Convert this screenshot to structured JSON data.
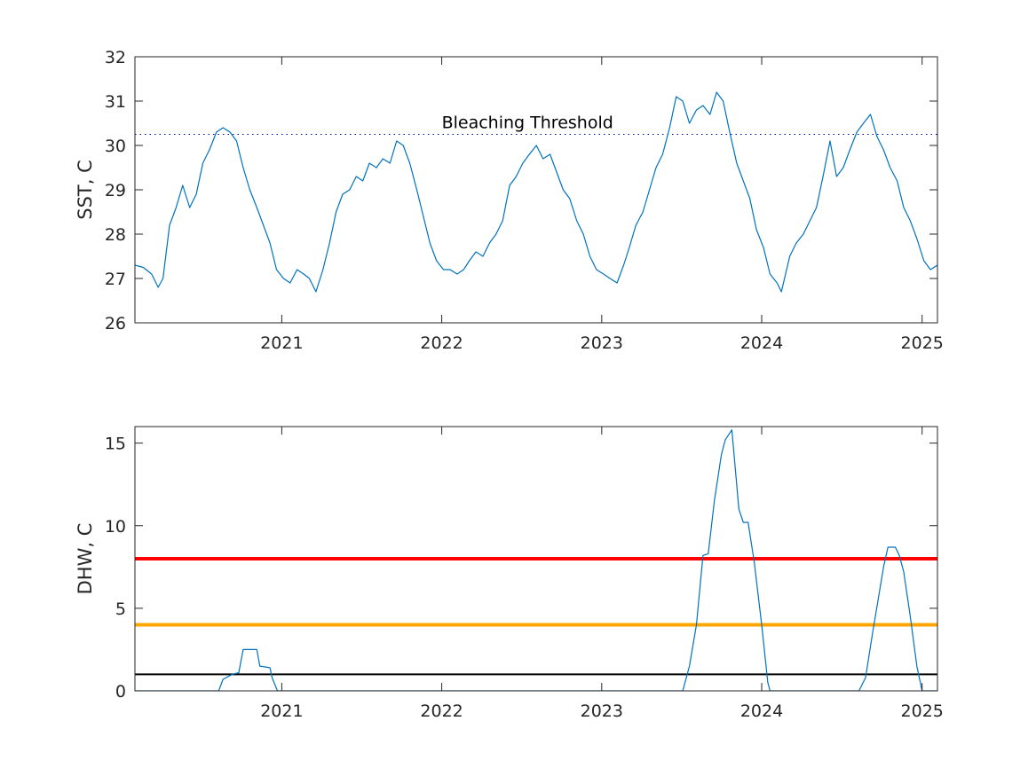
{
  "chart_data": [
    {
      "type": "line",
      "id": "sst",
      "xlabel": "",
      "ylabel": "SST, C",
      "xlim": [
        "2020-02-01",
        "2025-02-05"
      ],
      "ylim": [
        26,
        32
      ],
      "xticks": [
        {
          "date": "2021-01-01",
          "label": "2021"
        },
        {
          "date": "2022-01-01",
          "label": "2022"
        },
        {
          "date": "2023-01-01",
          "label": "2023"
        },
        {
          "date": "2024-01-01",
          "label": "2024"
        },
        {
          "date": "2025-01-01",
          "label": "2025"
        }
      ],
      "yticks": [
        26,
        27,
        28,
        29,
        30,
        31,
        32
      ],
      "grid": false,
      "series": [
        {
          "color": "#0072BD",
          "points": [
            [
              "2020-02-01",
              27.3
            ],
            [
              "2020-02-20",
              27.25
            ],
            [
              "2020-03-10",
              27.1
            ],
            [
              "2020-03-25",
              26.8
            ],
            [
              "2020-04-05",
              27.0
            ],
            [
              "2020-04-20",
              28.2
            ],
            [
              "2020-05-05",
              28.6
            ],
            [
              "2020-05-20",
              29.1
            ],
            [
              "2020-06-05",
              28.6
            ],
            [
              "2020-06-20",
              28.9
            ],
            [
              "2020-07-05",
              29.6
            ],
            [
              "2020-07-20",
              29.9
            ],
            [
              "2020-08-05",
              30.3
            ],
            [
              "2020-08-20",
              30.4
            ],
            [
              "2020-09-05",
              30.3
            ],
            [
              "2020-09-20",
              30.1
            ],
            [
              "2020-10-05",
              29.5
            ],
            [
              "2020-10-20",
              29.0
            ],
            [
              "2020-11-05",
              28.6
            ],
            [
              "2020-11-20",
              28.2
            ],
            [
              "2020-12-05",
              27.8
            ],
            [
              "2020-12-20",
              27.2
            ],
            [
              "2021-01-05",
              27.0
            ],
            [
              "2021-01-20",
              26.9
            ],
            [
              "2021-02-05",
              27.2
            ],
            [
              "2021-02-20",
              27.1
            ],
            [
              "2021-03-05",
              27.0
            ],
            [
              "2021-03-20",
              26.7
            ],
            [
              "2021-04-05",
              27.2
            ],
            [
              "2021-04-20",
              27.8
            ],
            [
              "2021-05-05",
              28.5
            ],
            [
              "2021-05-20",
              28.9
            ],
            [
              "2021-06-05",
              29.0
            ],
            [
              "2021-06-20",
              29.3
            ],
            [
              "2021-07-05",
              29.2
            ],
            [
              "2021-07-20",
              29.6
            ],
            [
              "2021-08-05",
              29.5
            ],
            [
              "2021-08-20",
              29.7
            ],
            [
              "2021-09-05",
              29.6
            ],
            [
              "2021-09-20",
              30.1
            ],
            [
              "2021-10-05",
              30.0
            ],
            [
              "2021-10-20",
              29.6
            ],
            [
              "2021-11-05",
              29.0
            ],
            [
              "2021-11-20",
              28.4
            ],
            [
              "2021-12-05",
              27.8
            ],
            [
              "2021-12-20",
              27.4
            ],
            [
              "2022-01-05",
              27.2
            ],
            [
              "2022-01-20",
              27.2
            ],
            [
              "2022-02-05",
              27.1
            ],
            [
              "2022-02-20",
              27.2
            ],
            [
              "2022-03-05",
              27.4
            ],
            [
              "2022-03-20",
              27.6
            ],
            [
              "2022-04-05",
              27.5
            ],
            [
              "2022-04-20",
              27.8
            ],
            [
              "2022-05-05",
              28.0
            ],
            [
              "2022-05-20",
              28.3
            ],
            [
              "2022-06-05",
              29.1
            ],
            [
              "2022-06-20",
              29.3
            ],
            [
              "2022-07-05",
              29.6
            ],
            [
              "2022-07-20",
              29.8
            ],
            [
              "2022-08-05",
              30.0
            ],
            [
              "2022-08-20",
              29.7
            ],
            [
              "2022-09-05",
              29.8
            ],
            [
              "2022-09-20",
              29.4
            ],
            [
              "2022-10-05",
              29.0
            ],
            [
              "2022-10-20",
              28.8
            ],
            [
              "2022-11-05",
              28.3
            ],
            [
              "2022-11-20",
              28.0
            ],
            [
              "2022-12-05",
              27.5
            ],
            [
              "2022-12-20",
              27.2
            ],
            [
              "2023-01-05",
              27.1
            ],
            [
              "2023-01-20",
              27.0
            ],
            [
              "2023-02-05",
              26.9
            ],
            [
              "2023-02-20",
              27.3
            ],
            [
              "2023-03-05",
              27.7
            ],
            [
              "2023-03-20",
              28.2
            ],
            [
              "2023-04-05",
              28.5
            ],
            [
              "2023-04-20",
              29.0
            ],
            [
              "2023-05-05",
              29.5
            ],
            [
              "2023-05-20",
              29.8
            ],
            [
              "2023-06-05",
              30.4
            ],
            [
              "2023-06-20",
              31.1
            ],
            [
              "2023-07-05",
              31.0
            ],
            [
              "2023-07-20",
              30.5
            ],
            [
              "2023-08-05",
              30.8
            ],
            [
              "2023-08-20",
              30.9
            ],
            [
              "2023-09-05",
              30.7
            ],
            [
              "2023-09-20",
              31.2
            ],
            [
              "2023-10-05",
              31.0
            ],
            [
              "2023-10-20",
              30.3
            ],
            [
              "2023-11-05",
              29.6
            ],
            [
              "2023-11-20",
              29.2
            ],
            [
              "2023-12-05",
              28.8
            ],
            [
              "2023-12-20",
              28.1
            ],
            [
              "2024-01-05",
              27.7
            ],
            [
              "2024-01-20",
              27.1
            ],
            [
              "2024-02-05",
              26.9
            ],
            [
              "2024-02-15",
              26.7
            ],
            [
              "2024-03-05",
              27.5
            ],
            [
              "2024-03-20",
              27.8
            ],
            [
              "2024-04-05",
              28.0
            ],
            [
              "2024-04-20",
              28.3
            ],
            [
              "2024-05-05",
              28.6
            ],
            [
              "2024-05-20",
              29.3
            ],
            [
              "2024-06-05",
              30.1
            ],
            [
              "2024-06-20",
              29.3
            ],
            [
              "2024-07-05",
              29.5
            ],
            [
              "2024-07-20",
              29.9
            ],
            [
              "2024-08-05",
              30.3
            ],
            [
              "2024-08-20",
              30.5
            ],
            [
              "2024-09-05",
              30.7
            ],
            [
              "2024-09-20",
              30.2
            ],
            [
              "2024-10-05",
              29.9
            ],
            [
              "2024-10-20",
              29.5
            ],
            [
              "2024-11-05",
              29.2
            ],
            [
              "2024-11-20",
              28.6
            ],
            [
              "2024-12-05",
              28.3
            ],
            [
              "2024-12-20",
              27.9
            ],
            [
              "2025-01-05",
              27.4
            ],
            [
              "2025-01-20",
              27.2
            ],
            [
              "2025-02-05",
              27.3
            ]
          ]
        }
      ],
      "reference_lines": [
        {
          "y": 30.25,
          "style": "dotted",
          "color": "#0000AA",
          "label": "Bleaching Threshold",
          "label_date": "2022-01-01"
        }
      ]
    },
    {
      "type": "line",
      "id": "dhw",
      "xlabel": "",
      "ylabel": "DHW, C",
      "xlim": [
        "2020-02-01",
        "2025-02-05"
      ],
      "ylim": [
        0,
        16
      ],
      "xticks": [
        {
          "date": "2021-01-01",
          "label": "2021"
        },
        {
          "date": "2022-01-01",
          "label": "2022"
        },
        {
          "date": "2023-01-01",
          "label": "2023"
        },
        {
          "date": "2024-01-01",
          "label": "2024"
        },
        {
          "date": "2025-01-01",
          "label": "2025"
        }
      ],
      "yticks": [
        0,
        5,
        10,
        15
      ],
      "grid": false,
      "series": [
        {
          "color": "#0072BD",
          "points": [
            [
              "2020-02-01",
              0
            ],
            [
              "2020-08-10",
              0
            ],
            [
              "2020-08-20",
              0.7
            ],
            [
              "2020-09-10",
              1.0
            ],
            [
              "2020-09-25",
              1.1
            ],
            [
              "2020-10-05",
              2.5
            ],
            [
              "2020-11-05",
              2.5
            ],
            [
              "2020-11-12",
              1.5
            ],
            [
              "2020-12-05",
              1.4
            ],
            [
              "2020-12-10",
              0.8
            ],
            [
              "2020-12-22",
              0
            ],
            [
              "2023-07-05",
              0
            ],
            [
              "2023-07-20",
              1.5
            ],
            [
              "2023-08-05",
              4.0
            ],
            [
              "2023-08-20",
              8.2
            ],
            [
              "2023-09-01",
              8.3
            ],
            [
              "2023-09-15",
              11.5
            ],
            [
              "2023-10-01",
              14.3
            ],
            [
              "2023-10-10",
              15.2
            ],
            [
              "2023-10-25",
              15.8
            ],
            [
              "2023-11-10",
              11.0
            ],
            [
              "2023-11-20",
              10.2
            ],
            [
              "2023-12-01",
              10.2
            ],
            [
              "2023-12-15",
              7.8
            ],
            [
              "2024-01-01",
              4.0
            ],
            [
              "2024-01-15",
              0.5
            ],
            [
              "2024-01-20",
              0
            ],
            [
              "2024-08-10",
              0
            ],
            [
              "2024-08-25",
              0.8
            ],
            [
              "2024-09-10",
              3.5
            ],
            [
              "2024-10-05",
              7.5
            ],
            [
              "2024-10-15",
              8.7
            ],
            [
              "2024-11-01",
              8.7
            ],
            [
              "2024-11-10",
              8.2
            ],
            [
              "2024-11-20",
              7.2
            ],
            [
              "2024-12-05",
              4.5
            ],
            [
              "2024-12-20",
              1.5
            ],
            [
              "2025-01-01",
              0
            ],
            [
              "2025-02-05",
              0
            ]
          ]
        }
      ],
      "reference_lines": [
        {
          "y": 8,
          "style": "solid",
          "color": "#FF0000"
        },
        {
          "y": 4,
          "style": "solid",
          "color": "#FFA500"
        },
        {
          "y": 1,
          "style": "solid",
          "color": "#000000"
        }
      ]
    }
  ]
}
